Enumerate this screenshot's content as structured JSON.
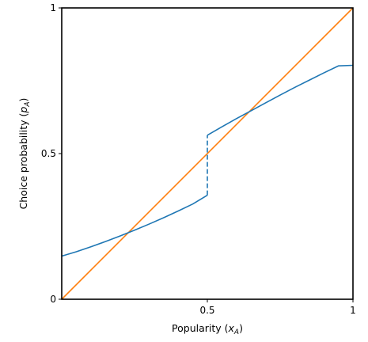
{
  "chart_data": {
    "type": "line",
    "title": "",
    "xlabel": {
      "prefix": "Popularity (",
      "var": "x",
      "sub": "A",
      "suffix": ")"
    },
    "ylabel": {
      "prefix": "Choice probability (",
      "var": "p",
      "sub": "A",
      "suffix": ")"
    },
    "xlim": [
      0,
      1
    ],
    "ylim": [
      0,
      1
    ],
    "xticks": [
      {
        "value": 0.5,
        "label": "0.5"
      },
      {
        "value": 1,
        "label": "1"
      }
    ],
    "yticks": [
      {
        "value": 0,
        "label": "0"
      },
      {
        "value": 0.5,
        "label": "0.5"
      },
      {
        "value": 1,
        "label": "1"
      }
    ],
    "grid": false,
    "series": [
      {
        "color": "#ff7f0e",
        "segments": [
          {
            "style": "solid",
            "x": [
              0,
              1
            ],
            "y": [
              0,
              1
            ]
          }
        ]
      },
      {
        "color": "#1f77b4",
        "segments": [
          {
            "style": "solid",
            "x": [
              0,
              0.05,
              0.1,
              0.15,
              0.2,
              0.25,
              0.3,
              0.35,
              0.4,
              0.45,
              0.5
            ],
            "y": [
              0.148,
              0.163,
              0.18,
              0.198,
              0.217,
              0.237,
              0.258,
              0.28,
              0.303,
              0.327,
              0.357
            ]
          },
          {
            "style": "dashed",
            "x": [
              0.5,
              0.5
            ],
            "y": [
              0.357,
              0.563
            ]
          },
          {
            "style": "solid",
            "x": [
              0.5,
              0.55,
              0.6,
              0.65,
              0.7,
              0.75,
              0.8,
              0.85,
              0.9,
              0.95,
              1.0
            ],
            "y": [
              0.563,
              0.592,
              0.62,
              0.647,
              0.674,
              0.701,
              0.727,
              0.752,
              0.777,
              0.801,
              0.803
            ]
          }
        ]
      }
    ]
  }
}
